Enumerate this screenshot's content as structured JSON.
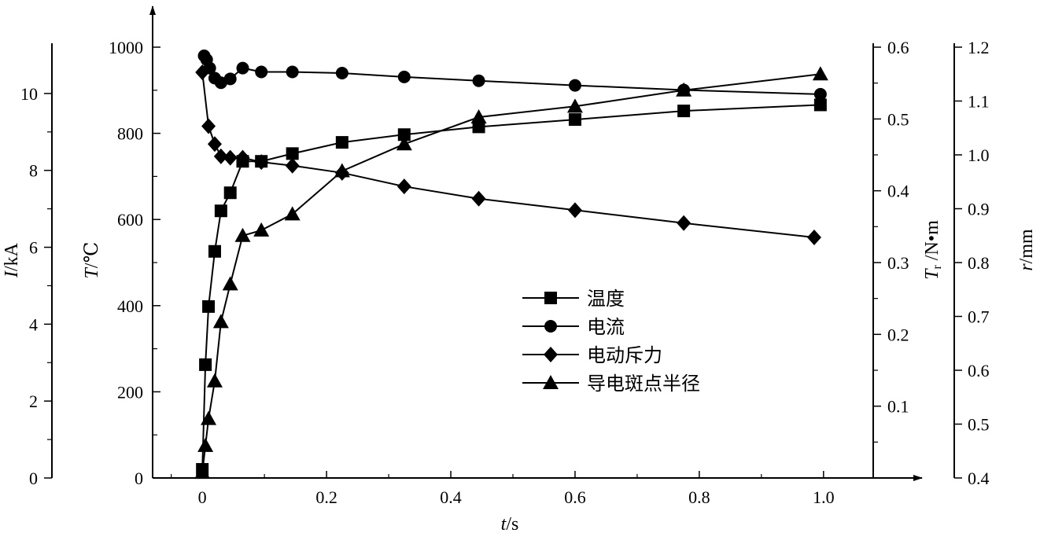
{
  "chart_data": {
    "type": "line",
    "x_axis": {
      "label_italic": "t",
      "label_unit": "/s",
      "range": [
        -0.08,
        1.08
      ],
      "ticks": [
        0,
        0.2,
        0.4,
        0.6,
        0.8,
        1.0
      ],
      "tick_labels": [
        "0",
        "0.2",
        "0.4",
        "0.6",
        "0.8",
        "1.0"
      ]
    },
    "y_axes": {
      "current": {
        "label_italic": "I",
        "label_unit": "/kA",
        "range": [
          0,
          11
        ],
        "ticks": [
          0,
          2,
          4,
          6,
          8,
          10
        ],
        "tick_labels": [
          "0",
          "2",
          "4",
          "6",
          "8",
          "10"
        ]
      },
      "temperature": {
        "label_italic": "T",
        "label_unit": "/℃",
        "range": [
          0,
          1000
        ],
        "ticks": [
          0,
          200,
          400,
          600,
          800,
          1000
        ],
        "tick_labels": [
          "0",
          "200",
          "400",
          "600",
          "800",
          "1000"
        ]
      },
      "force": {
        "label_italic": "T",
        "label_sub": "r",
        "label_unit": " /N•m",
        "range": [
          0,
          0.6
        ],
        "ticks": [
          0.1,
          0.2,
          0.3,
          0.4,
          0.5,
          0.6
        ],
        "tick_labels": [
          "0.1",
          "0.2",
          "0.3",
          "0.4",
          "0.5",
          "0.6"
        ]
      },
      "radius": {
        "label_italic": "r",
        "label_unit": "/mm",
        "range": [
          0.4,
          1.2
        ],
        "ticks": [
          0.4,
          0.5,
          0.6,
          0.7,
          0.8,
          0.9,
          1.0,
          1.1,
          1.2
        ],
        "tick_labels": [
          "0.4",
          "0.5",
          "0.6",
          "0.7",
          "0.8",
          "0.9",
          "1.0",
          "1.1",
          "1.2"
        ]
      }
    },
    "series": [
      {
        "name": "温度",
        "marker": "square",
        "axis": "temperature",
        "x": [
          0,
          0.005,
          0.01,
          0.02,
          0.03,
          0.045,
          0.065,
          0.095,
          0.145,
          0.225,
          0.325,
          0.445,
          0.6,
          0.775,
          0.995
        ],
        "y": [
          20,
          263,
          398,
          526,
          620,
          662,
          735,
          735,
          753,
          779,
          797,
          815,
          832,
          852,
          866
        ]
      },
      {
        "name": "电流",
        "marker": "circle",
        "axis": "current",
        "x": [
          0.003,
          0.007,
          0.012,
          0.02,
          0.03,
          0.045,
          0.065,
          0.095,
          0.145,
          0.225,
          0.325,
          0.445,
          0.6,
          0.775,
          0.995
        ],
        "y": [
          10.98,
          10.88,
          10.66,
          10.4,
          10.28,
          10.38,
          10.66,
          10.56,
          10.56,
          10.53,
          10.43,
          10.33,
          10.21,
          10.09,
          9.98
        ]
      },
      {
        "name": "电动斥力",
        "marker": "diamond",
        "axis": "force",
        "x": [
          0,
          0.01,
          0.02,
          0.03,
          0.045,
          0.065,
          0.095,
          0.145,
          0.225,
          0.325,
          0.445,
          0.6,
          0.775,
          0.985
        ],
        "y": [
          0.565,
          0.49,
          0.465,
          0.448,
          0.446,
          0.446,
          0.44,
          0.435,
          0.425,
          0.406,
          0.389,
          0.373,
          0.355,
          0.335
        ]
      },
      {
        "name": "导电斑点半径",
        "marker": "triangle",
        "axis": "radius",
        "x": [
          0,
          0.005,
          0.01,
          0.02,
          0.03,
          0.045,
          0.065,
          0.095,
          0.145,
          0.225,
          0.325,
          0.445,
          0.6,
          0.775,
          0.995
        ],
        "y": [
          0.41,
          0.46,
          0.51,
          0.58,
          0.69,
          0.76,
          0.85,
          0.86,
          0.89,
          0.97,
          1.02,
          1.07,
          1.09,
          1.12,
          1.15
        ]
      }
    ],
    "legend": {
      "position": "center-right",
      "labels": [
        "温度",
        "电流",
        "电动斥力",
        "导电斑点半径"
      ]
    },
    "grid": false
  }
}
